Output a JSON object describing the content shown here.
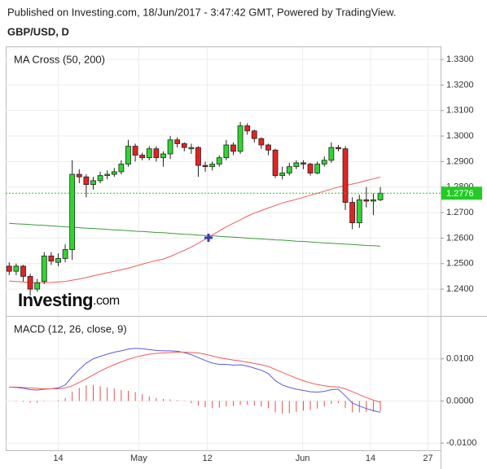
{
  "header": {
    "published": "Published on Investing.com, 18/Jun/2017 - 3:47:42 GMT, Powered by TradingView.",
    "symbol": "GBP/USD, D"
  },
  "logo": {
    "brand": "Investing",
    "suffix": ".com"
  },
  "chart_data": [
    {
      "type": "candlestick",
      "title": "MA Cross (50, 200)",
      "x": [
        0,
        1,
        2,
        3,
        4,
        5,
        6,
        7,
        8,
        9,
        10,
        11,
        12,
        13,
        14,
        15,
        16,
        17,
        18,
        19,
        20,
        21,
        22,
        23,
        24,
        25,
        26,
        27,
        28,
        29,
        30,
        31,
        32,
        33,
        34,
        35,
        36,
        37,
        38,
        39,
        40,
        41,
        42,
        43,
        44,
        45,
        46,
        47,
        48,
        49,
        50,
        51,
        52,
        53
      ],
      "open": [
        1.249,
        1.247,
        1.249,
        1.245,
        1.24,
        1.243,
        1.253,
        1.2505,
        1.252,
        1.2555,
        1.285,
        1.284,
        1.281,
        1.2825,
        1.2845,
        1.285,
        1.286,
        1.289,
        1.296,
        1.2925,
        1.2915,
        1.295,
        1.2915,
        1.293,
        1.2985,
        1.297,
        1.295,
        1.2955,
        1.2885,
        1.288,
        1.289,
        1.2915,
        1.2965,
        1.294,
        1.304,
        1.302,
        1.299,
        1.2965,
        1.2945,
        1.2845,
        1.2855,
        1.288,
        1.2895,
        1.289,
        1.2855,
        1.289,
        1.2905,
        1.2955,
        1.295,
        1.274,
        1.266,
        1.275,
        1.2745,
        1.275
      ],
      "high": [
        1.2505,
        1.25,
        1.2495,
        1.246,
        1.244,
        1.2545,
        1.2545,
        1.254,
        1.2575,
        1.2905,
        1.287,
        1.285,
        1.284,
        1.286,
        1.2865,
        1.2875,
        1.2905,
        1.2985,
        1.297,
        1.2935,
        1.296,
        1.296,
        1.294,
        1.3,
        1.2995,
        1.2975,
        1.297,
        1.296,
        1.29,
        1.29,
        1.2925,
        1.2985,
        1.2975,
        1.3055,
        1.305,
        1.3025,
        1.2995,
        1.297,
        1.295,
        1.288,
        1.2895,
        1.2905,
        1.2905,
        1.2895,
        1.29,
        1.292,
        1.2975,
        1.2965,
        1.296,
        1.276,
        1.277,
        1.28,
        1.2775,
        1.28
      ],
      "low": [
        1.2455,
        1.2455,
        1.243,
        1.2375,
        1.239,
        1.242,
        1.2495,
        1.249,
        1.2505,
        1.2515,
        1.2815,
        1.276,
        1.279,
        1.2815,
        1.283,
        1.284,
        1.285,
        1.288,
        1.29,
        1.2905,
        1.2905,
        1.29,
        1.288,
        1.291,
        1.2955,
        1.294,
        1.293,
        1.284,
        1.286,
        1.2865,
        1.288,
        1.2905,
        1.2925,
        1.293,
        1.3005,
        1.2975,
        1.295,
        1.2925,
        1.2835,
        1.283,
        1.2845,
        1.287,
        1.287,
        1.2845,
        1.285,
        1.288,
        1.2895,
        1.294,
        1.271,
        1.2635,
        1.264,
        1.272,
        1.269,
        1.2745
      ],
      "close": [
        1.247,
        1.249,
        1.245,
        1.24,
        1.2425,
        1.253,
        1.251,
        1.252,
        1.2555,
        1.285,
        1.284,
        1.281,
        1.2825,
        1.2845,
        1.285,
        1.286,
        1.289,
        1.296,
        1.2925,
        1.2915,
        1.295,
        1.2915,
        1.293,
        1.2985,
        1.297,
        1.2955,
        1.2955,
        1.2885,
        1.288,
        1.289,
        1.2915,
        1.2965,
        1.294,
        1.304,
        1.302,
        1.299,
        1.2965,
        1.2945,
        1.2845,
        1.2855,
        1.288,
        1.2895,
        1.289,
        1.2855,
        1.289,
        1.2905,
        1.2955,
        1.295,
        1.274,
        1.266,
        1.275,
        1.2745,
        1.275,
        1.2776
      ],
      "up_color": "#2fd62f",
      "down_color": "#e52222",
      "series": [
        {
          "color": "#f25a5a",
          "values": [
            1.2432,
            1.243,
            1.2428,
            1.2426,
            1.2425,
            1.2425,
            1.2426,
            1.2428,
            1.243,
            1.2435,
            1.244,
            1.2446,
            1.2452,
            1.2458,
            1.2464,
            1.247,
            1.2476,
            1.2482,
            1.249,
            1.2498,
            1.2505,
            1.2512,
            1.2518,
            1.2528,
            1.254,
            1.2552,
            1.2565,
            1.258,
            1.2596,
            1.2612,
            1.2628,
            1.2644,
            1.2658,
            1.2672,
            1.2686,
            1.2698,
            1.2708,
            1.2718,
            1.2728,
            1.2738,
            1.2745,
            1.2752,
            1.276,
            1.2768,
            1.2776,
            1.2784,
            1.2792,
            1.28,
            1.2806,
            1.2812,
            1.2818,
            1.2826,
            1.2832,
            1.2839
          ]
        },
        {
          "color": "#3a9a3a",
          "values": [
            1.2658,
            1.2656,
            1.2655,
            1.2653,
            1.2651,
            1.265,
            1.2648,
            1.2646,
            1.2644,
            1.2643,
            1.2641,
            1.2639,
            1.2638,
            1.2636,
            1.2634,
            1.2632,
            1.2631,
            1.2629,
            1.2627,
            1.2626,
            1.2624,
            1.2622,
            1.2621,
            1.2619,
            1.2617,
            1.2615,
            1.2614,
            1.2612,
            1.261,
            1.2609,
            1.2607,
            1.2605,
            1.2604,
            1.2602,
            1.26,
            1.2598,
            1.2597,
            1.2595,
            1.2593,
            1.2592,
            1.259,
            1.2588,
            1.2587,
            1.2585,
            1.2583,
            1.2581,
            1.258,
            1.2578,
            1.2576,
            1.2575,
            1.2573,
            1.2571,
            1.257,
            1.2568
          ]
        }
      ],
      "xlim": [
        -0.5,
        61.6
      ],
      "ylim": [
        1.2295,
        1.3348
      ],
      "yticks": [
        {
          "value": 1.33,
          "label": "1.3300"
        },
        {
          "value": 1.32,
          "label": "1.3200"
        },
        {
          "value": 1.31,
          "label": "1.3100"
        },
        {
          "value": 1.3,
          "label": "1.3000"
        },
        {
          "value": 1.29,
          "label": "1.2900"
        },
        {
          "value": 1.28,
          "label": "1.2800"
        },
        {
          "value": 1.27,
          "label": "1.2700"
        },
        {
          "value": 1.26,
          "label": "1.2600"
        },
        {
          "value": 1.25,
          "label": "1.2500"
        },
        {
          "value": 1.24,
          "label": "1.2400"
        }
      ],
      "last_color": "#22cc22"
    },
    {
      "type": "macd",
      "title": "MACD (12, 26, close, 9)",
      "x": [
        0,
        1,
        2,
        3,
        4,
        5,
        6,
        7,
        8,
        9,
        10,
        11,
        12,
        13,
        14,
        15,
        16,
        17,
        18,
        19,
        20,
        21,
        22,
        23,
        24,
        25,
        26,
        27,
        28,
        29,
        30,
        31,
        32,
        33,
        34,
        35,
        36,
        37,
        38,
        39,
        40,
        41,
        42,
        43,
        44,
        45,
        46,
        47,
        48,
        49,
        50,
        51,
        52,
        53
      ],
      "series": [
        {
          "color": "#5a5ae6",
          "values": [
            0.0033,
            0.0032,
            0.003,
            0.0027,
            0.0026,
            0.0028,
            0.0029,
            0.0031,
            0.0038,
            0.0058,
            0.0075,
            0.009,
            0.01,
            0.0106,
            0.0111,
            0.0116,
            0.0119,
            0.0123,
            0.0125,
            0.0124,
            0.0122,
            0.012,
            0.0119,
            0.0119,
            0.0118,
            0.0115,
            0.011,
            0.0103,
            0.0096,
            0.009,
            0.0087,
            0.0087,
            0.0085,
            0.0086,
            0.0083,
            0.0078,
            0.0073,
            0.0065,
            0.0048,
            0.0038,
            0.0032,
            0.0028,
            0.0025,
            0.0022,
            0.0021,
            0.0023,
            0.0027,
            0.0028,
            0.0012,
            -0.0005,
            -0.0012,
            -0.0018,
            -0.0023,
            -0.0027
          ]
        },
        {
          "color": "#f25a5a",
          "values": [
            0.0033,
            0.0033,
            0.0032,
            0.0031,
            0.003,
            0.0029,
            0.0029,
            0.0029,
            0.0031,
            0.0036,
            0.0044,
            0.0053,
            0.0062,
            0.0071,
            0.0079,
            0.0086,
            0.0093,
            0.0099,
            0.0104,
            0.0108,
            0.0111,
            0.0113,
            0.0114,
            0.0115,
            0.0116,
            0.0116,
            0.0115,
            0.0114,
            0.0111,
            0.0107,
            0.0103,
            0.01,
            0.0097,
            0.0095,
            0.0092,
            0.0089,
            0.0086,
            0.0082,
            0.0075,
            0.0068,
            0.0061,
            0.0054,
            0.0048,
            0.0043,
            0.0039,
            0.0036,
            0.0034,
            0.0033,
            0.0029,
            0.0022,
            0.0015,
            0.0008,
            0.0002,
            -0.0003
          ]
        }
      ],
      "histogram": {
        "color": "#e65050",
        "values": [
          0,
          -0.0001,
          -0.0002,
          -0.0004,
          -0.0004,
          -0.0001,
          0,
          0.0002,
          0.0007,
          0.0022,
          0.0031,
          0.0037,
          0.0038,
          0.0035,
          0.0032,
          0.003,
          0.0026,
          0.0024,
          0.0021,
          0.0016,
          0.0011,
          0.0007,
          0.0005,
          0.0004,
          0.0002,
          -0.0001,
          -0.0005,
          -0.0011,
          -0.0015,
          -0.0017,
          -0.0016,
          -0.0013,
          -0.0012,
          -0.0009,
          -0.0009,
          -0.0011,
          -0.0013,
          -0.0017,
          -0.0027,
          -0.003,
          -0.0029,
          -0.0026,
          -0.0023,
          -0.0021,
          -0.0018,
          -0.0013,
          -0.0007,
          -0.0005,
          -0.0017,
          -0.0027,
          -0.0027,
          -0.0026,
          -0.0025,
          -0.0024
        ]
      },
      "xlim": [
        -0.5,
        61.6
      ],
      "ylim": [
        -0.0117,
        0.02
      ],
      "yticks": [
        {
          "value": 0.01,
          "label": "0.0100"
        },
        {
          "value": 0,
          "label": "0.0000"
        },
        {
          "value": -0.01,
          "label": "-0.0100"
        }
      ],
      "xticks": [
        {
          "value": 7,
          "label": "14"
        },
        {
          "value": 18.5,
          "label": "May"
        },
        {
          "value": 28.3,
          "label": "12"
        },
        {
          "value": 41.9,
          "label": "Jun"
        },
        {
          "value": 51.6,
          "label": "14"
        },
        {
          "value": 59.8,
          "label": "27"
        }
      ]
    }
  ]
}
